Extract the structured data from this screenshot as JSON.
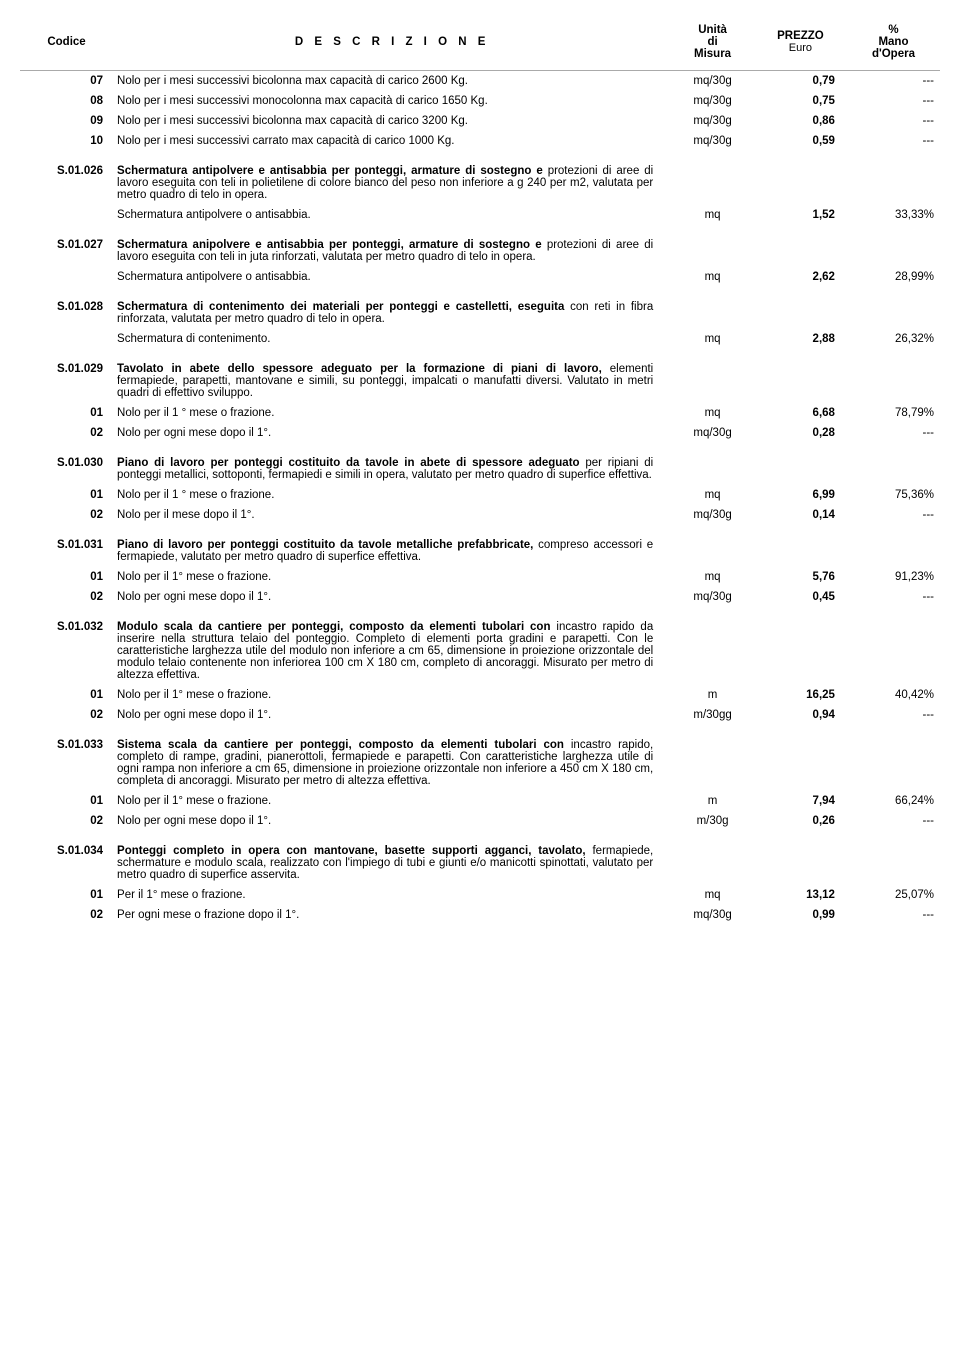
{
  "header": {
    "code": "Codice",
    "desc": "D E S C R I Z I O N E",
    "unit_line1": "Unità",
    "unit_line2": "di",
    "unit_line3": "Misura",
    "price_line1": "PREZZO",
    "price_line2": "Euro",
    "labor_line1": "%",
    "labor_line2": "Mano",
    "labor_line3": "d'Opera"
  },
  "rows": [
    {
      "type": "line",
      "code": "07",
      "desc": "Nolo per i mesi successivi bicolonna max capacità di carico 2600 Kg.",
      "unit": "mq/30g",
      "price": "0,79",
      "labor": "---"
    },
    {
      "type": "line",
      "code": "08",
      "desc": "Nolo per i mesi successivi monocolonna max capacità di carico 1650 Kg.",
      "unit": "mq/30g",
      "price": "0,75",
      "labor": "---"
    },
    {
      "type": "line",
      "code": "09",
      "desc": "Nolo per i mesi successivi bicolonna max capacità di carico 3200 Kg.",
      "unit": "mq/30g",
      "price": "0,86",
      "labor": "---"
    },
    {
      "type": "line",
      "code": "10",
      "desc": "Nolo per i mesi successivi carrato max capacità di carico 1000 Kg.",
      "unit": "mq/30g",
      "price": "0,59",
      "labor": "---"
    },
    {
      "type": "spacer"
    },
    {
      "type": "head",
      "code": "S.01.026",
      "lead": "Schermatura antipolvere e antisabbia per ponteggi, armature di sostegno e",
      "rest": "protezioni di aree di lavoro eseguita con teli in polietilene di colore bianco del peso non inferiore a g 240 per m2, valutata per metro quadro di telo in opera."
    },
    {
      "type": "line",
      "code": "",
      "desc": "Schermatura antipolvere o antisabbia.",
      "unit": "mq",
      "price": "1,52",
      "labor": "33,33%"
    },
    {
      "type": "spacer"
    },
    {
      "type": "head",
      "code": "S.01.027",
      "lead": "Schermatura anipolvere e antisabbia per ponteggi, armature di sostegno e",
      "rest": "protezioni di aree di lavoro eseguita con teli in juta rinforzati, valutata per metro quadro di telo in opera."
    },
    {
      "type": "line",
      "code": "",
      "desc": "Schermatura antipolvere o antisabbia.",
      "unit": "mq",
      "price": "2,62",
      "labor": "28,99%"
    },
    {
      "type": "spacer"
    },
    {
      "type": "head",
      "code": "S.01.028",
      "lead": "Schermatura di contenimento dei materiali per ponteggi e castelletti, eseguita",
      "rest": "con reti in fibra rinforzata, valutata per metro quadro di telo in opera."
    },
    {
      "type": "line",
      "code": "",
      "desc": "Schermatura di contenimento.",
      "unit": "mq",
      "price": "2,88",
      "labor": "26,32%"
    },
    {
      "type": "spacer"
    },
    {
      "type": "head",
      "code": "S.01.029",
      "lead": "Tavolato in abete dello spessore adeguato per la formazione di piani di lavoro,",
      "rest": "elementi fermapiede, parapetti, mantovane e simili, su ponteggi, impalcati o manufatti diversi. Valutato in metri quadri di effettivo sviluppo."
    },
    {
      "type": "line",
      "code": "01",
      "desc": "Nolo per il 1 ° mese o frazione.",
      "unit": "mq",
      "price": "6,68",
      "labor": "78,79%"
    },
    {
      "type": "line",
      "code": "02",
      "desc": "Nolo per ogni mese dopo il 1°.",
      "unit": "mq/30g",
      "price": "0,28",
      "labor": "---"
    },
    {
      "type": "spacer"
    },
    {
      "type": "head",
      "code": "S.01.030",
      "lead": "Piano di lavoro per ponteggi costituito da tavole in abete di spessore adeguato",
      "rest": "per ripiani di ponteggi metallici, sottoponti, fermapiedi e simili in opera, valutato per metro quadro di superfice effettiva."
    },
    {
      "type": "line",
      "code": "01",
      "desc": "Nolo per il 1 ° mese o frazione.",
      "unit": "mq",
      "price": "6,99",
      "labor": "75,36%"
    },
    {
      "type": "line",
      "code": "02",
      "desc": "Nolo per il mese dopo il 1°.",
      "unit": "mq/30g",
      "price": "0,14",
      "labor": "---"
    },
    {
      "type": "spacer"
    },
    {
      "type": "head",
      "code": "S.01.031",
      "lead": "Piano di lavoro per ponteggi costituito da tavole metalliche prefabbricate,",
      "rest": "compreso accessori e fermapiede, valutato per metro quadro di superfice effettiva."
    },
    {
      "type": "line",
      "code": "01",
      "desc": "Nolo per il 1° mese o frazione.",
      "unit": "mq",
      "price": "5,76",
      "labor": "91,23%"
    },
    {
      "type": "line",
      "code": "02",
      "desc": "Nolo per ogni mese dopo il 1°.",
      "unit": "mq/30g",
      "price": "0,45",
      "labor": "---"
    },
    {
      "type": "spacer"
    },
    {
      "type": "head",
      "code": "S.01.032",
      "lead": "Modulo scala da cantiere per ponteggi, composto da elementi tubolari con",
      "rest": "incastro rapido da inserire nella struttura telaio del ponteggio. Completo di elementi porta gradini e parapetti. Con le caratteristiche larghezza utile del modulo non inferiore a cm 65, dimensione in proiezione orizzontale del modulo telaio contenente non inferiorea 100 cm X 180 cm, completo di ancoraggi. Misurato per metro di altezza effettiva."
    },
    {
      "type": "line",
      "code": "01",
      "desc": "Nolo per il 1° mese o frazione.",
      "unit": "m",
      "price": "16,25",
      "labor": "40,42%"
    },
    {
      "type": "line",
      "code": "02",
      "desc": "Nolo per ogni mese dopo il 1°.",
      "unit": "m/30gg",
      "price": "0,94",
      "labor": "---"
    },
    {
      "type": "spacer"
    },
    {
      "type": "head",
      "code": "S.01.033",
      "lead": "Sistema scala da cantiere per ponteggi, composto da elementi tubolari con",
      "rest": "incastro rapido, completo di rampe, gradini, pianerottoli, fermapiede e parapetti. Con caratteristiche larghezza utile di ogni rampa non inferiore a cm 65, dimensione in proiezione orizzontale non inferiore a 450 cm X 180 cm, completa di ancoraggi. Misurato per metro di altezza effettiva."
    },
    {
      "type": "line",
      "code": "01",
      "desc": "Nolo per il 1° mese o frazione.",
      "unit": "m",
      "price": "7,94",
      "labor": "66,24%"
    },
    {
      "type": "line",
      "code": "02",
      "desc": "Nolo per ogni mese dopo il 1°.",
      "unit": "m/30g",
      "price": "0,26",
      "labor": "---"
    },
    {
      "type": "spacer"
    },
    {
      "type": "head",
      "code": "S.01.034",
      "lead": "Ponteggi completo in opera con mantovane, basette supporti agganci, tavolato,",
      "rest": "fermapiede, schermature e modulo scala, realizzato con l'impiego di tubi e giunti e/o manicotti spinottati, valutato per metro quadro di superfice asservita."
    },
    {
      "type": "line",
      "code": "01",
      "desc": "Per il 1° mese o frazione.",
      "unit": "mq",
      "price": "13,12",
      "labor": "25,07%"
    },
    {
      "type": "line",
      "code": "02",
      "desc": "Per ogni mese o frazione dopo il 1°.",
      "unit": "mq/30g",
      "price": "0,99",
      "labor": "---"
    }
  ]
}
